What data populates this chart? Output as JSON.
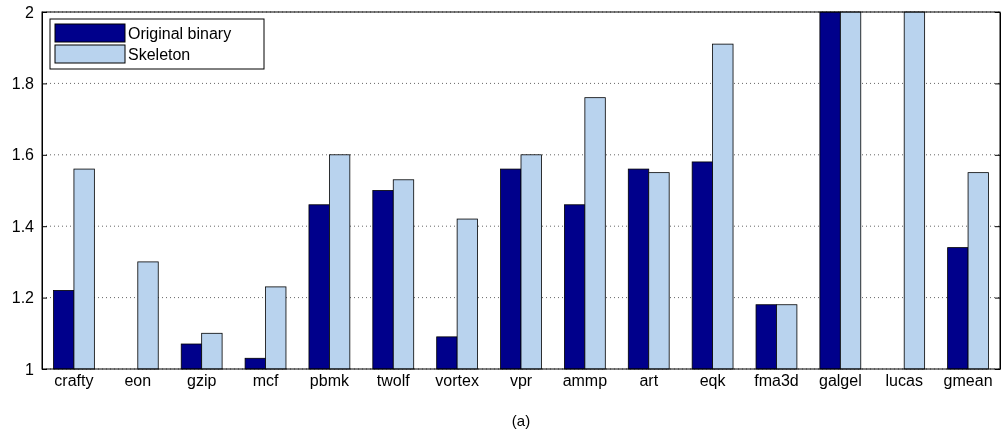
{
  "chart_data": {
    "type": "bar",
    "categories": [
      "crafty",
      "eon",
      "gzip",
      "mcf",
      "pbmk",
      "twolf",
      "vortex",
      "vpr",
      "ammp",
      "art",
      "eqk",
      "fma3d",
      "galgel",
      "lucas",
      "gmean"
    ],
    "series": [
      {
        "name": "Original binary",
        "color": "#00008b",
        "values": [
          1.22,
          1,
          1.07,
          1.03,
          1.46,
          1.5,
          1.09,
          1.56,
          1.46,
          1.56,
          1.58,
          1.18,
          2,
          1,
          1.34
        ]
      },
      {
        "name": "Skeleton",
        "color": "#b9d3ee",
        "values": [
          1.56,
          1.3,
          1.1,
          1.23,
          1.6,
          1.53,
          1.42,
          1.6,
          1.76,
          1.55,
          1.91,
          1.18,
          2,
          2,
          1.55
        ]
      }
    ],
    "ylim": [
      1,
      2
    ],
    "yticks": [
      1,
      1.2,
      1.4,
      1.6,
      1.8,
      2
    ],
    "grid": "y",
    "legend": "top left",
    "annotations": [
      "(a)"
    ]
  }
}
